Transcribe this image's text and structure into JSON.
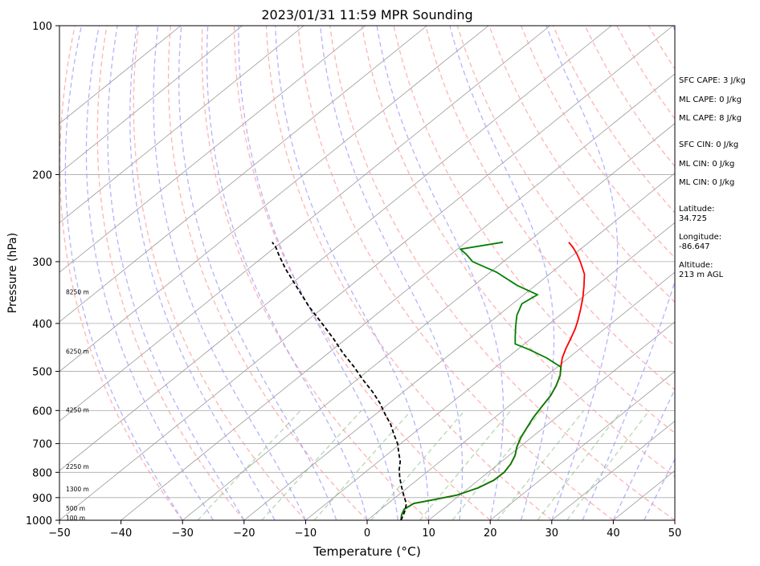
{
  "chart_data": {
    "type": "line",
    "title": "2023/01/31 11:59 MPR Sounding",
    "xlabel": "Temperature (°C)",
    "ylabel": "Pressure (hPa)",
    "xlim": [
      -50,
      50
    ],
    "ylim": [
      1000,
      100
    ],
    "y_scale": "log",
    "grid": true,
    "x_ticks": [
      -50,
      -40,
      -30,
      -20,
      -10,
      0,
      10,
      20,
      30,
      40,
      50
    ],
    "y_ticks": [
      1000,
      900,
      800,
      700,
      600,
      500,
      400,
      300,
      200,
      100
    ],
    "skew": true,
    "series": [
      {
        "role": "temperature",
        "color": "#ff0000",
        "points": [
          [
            5.5,
            1000
          ],
          [
            4.5,
            975
          ],
          [
            3.8,
            950
          ],
          [
            4.2,
            925
          ],
          [
            6.5,
            910
          ],
          [
            9.5,
            890
          ],
          [
            11.5,
            860
          ],
          [
            12.5,
            830
          ],
          [
            12.6,
            800
          ],
          [
            12.0,
            770
          ],
          [
            11.0,
            740
          ],
          [
            9.5,
            710
          ],
          [
            8.3,
            680
          ],
          [
            7.3,
            650
          ],
          [
            6.3,
            620
          ],
          [
            5.5,
            590
          ],
          [
            4.7,
            560
          ],
          [
            3.6,
            535
          ],
          [
            2.2,
            510
          ],
          [
            0.6,
            490
          ],
          [
            -1.0,
            470
          ],
          [
            -2.3,
            450
          ],
          [
            -3.5,
            430
          ],
          [
            -4.8,
            410
          ],
          [
            -6.0,
            395
          ],
          [
            -7.8,
            375
          ],
          [
            -9.8,
            355
          ],
          [
            -12.0,
            336
          ],
          [
            -14.3,
            318
          ],
          [
            -17.5,
            300
          ],
          [
            -19.5,
            290
          ],
          [
            -21.5,
            281
          ],
          [
            -23.3,
            274
          ]
        ]
      },
      {
        "role": "dewpoint",
        "color": "#008000",
        "points": [
          [
            5.5,
            1000
          ],
          [
            4.5,
            975
          ],
          [
            3.8,
            950
          ],
          [
            4.2,
            925
          ],
          [
            6.5,
            910
          ],
          [
            9.5,
            890
          ],
          [
            11.5,
            860
          ],
          [
            12.5,
            830
          ],
          [
            12.6,
            800
          ],
          [
            12.0,
            770
          ],
          [
            11.0,
            740
          ],
          [
            9.5,
            710
          ],
          [
            8.3,
            680
          ],
          [
            7.3,
            650
          ],
          [
            6.3,
            620
          ],
          [
            5.5,
            590
          ],
          [
            4.7,
            560
          ],
          [
            3.6,
            535
          ],
          [
            2.2,
            510
          ],
          [
            0.6,
            490
          ],
          [
            -3.5,
            470
          ],
          [
            -8.0,
            452
          ],
          [
            -11.5,
            440
          ],
          [
            -13.0,
            425
          ],
          [
            -15.0,
            405
          ],
          [
            -17.0,
            385
          ],
          [
            -18.5,
            365
          ],
          [
            -17.8,
            350
          ],
          [
            -23.0,
            335
          ],
          [
            -29.0,
            315
          ],
          [
            -35.0,
            300
          ],
          [
            -37.5,
            290
          ],
          [
            -39.5,
            283
          ],
          [
            -34.0,
            274
          ]
        ]
      },
      {
        "role": "parcel",
        "color": "#000000",
        "dashed": true,
        "points": [
          [
            5.5,
            1000
          ],
          [
            4.8,
            975
          ],
          [
            4.0,
            950
          ],
          [
            3.0,
            925
          ],
          [
            1.5,
            900
          ],
          [
            0.0,
            875
          ],
          [
            -1.5,
            850
          ],
          [
            -3.3,
            820
          ],
          [
            -5.0,
            790
          ],
          [
            -6.5,
            760
          ],
          [
            -8.5,
            730
          ],
          [
            -10.5,
            700
          ],
          [
            -13.0,
            670
          ],
          [
            -15.5,
            640
          ],
          [
            -18.5,
            610
          ],
          [
            -21.5,
            580
          ],
          [
            -25.0,
            550
          ],
          [
            -29.0,
            520
          ],
          [
            -33.0,
            490
          ],
          [
            -37.5,
            460
          ],
          [
            -42.0,
            430
          ],
          [
            -47.0,
            400
          ],
          [
            -52.5,
            370
          ],
          [
            -58.0,
            340
          ],
          [
            -64.0,
            310
          ],
          [
            -68.0,
            290
          ],
          [
            -70.0,
            280
          ],
          [
            -71.5,
            274
          ]
        ]
      }
    ],
    "height_labels": [
      {
        "text": "8250 m",
        "p": 345
      },
      {
        "text": "6250 m",
        "p": 455
      },
      {
        "text": "4250 m",
        "p": 598
      },
      {
        "text": "2250 m",
        "p": 778
      },
      {
        "text": "1300 m",
        "p": 864
      },
      {
        "text": "500 m",
        "p": 945
      },
      {
        "text": "100 m",
        "p": 988
      }
    ],
    "colors": {
      "dry_adiabat": "#ff9999",
      "moist_adiabat": "#9999ff",
      "mixing_ratio": "#80c080",
      "isotherm": "#999999",
      "isobar": "#aaaaaa"
    }
  },
  "stats": [
    {
      "text": "SFC CAPE: 3 J/kg"
    },
    {
      "text": "ML CAPE: 0 J/kg"
    },
    {
      "text": "ML CAPE: 8 J/kg"
    },
    {
      "text": "SFC CIN: 0 J/kg"
    },
    {
      "text": "ML CIN: 0 J/kg"
    },
    {
      "text": "ML CIN: 0 J/kg"
    },
    {
      "text": "Latitude:\n34.725"
    },
    {
      "text": "Longitude:\n-86.647"
    },
    {
      "text": "Altitude:\n213 m AGL"
    }
  ]
}
